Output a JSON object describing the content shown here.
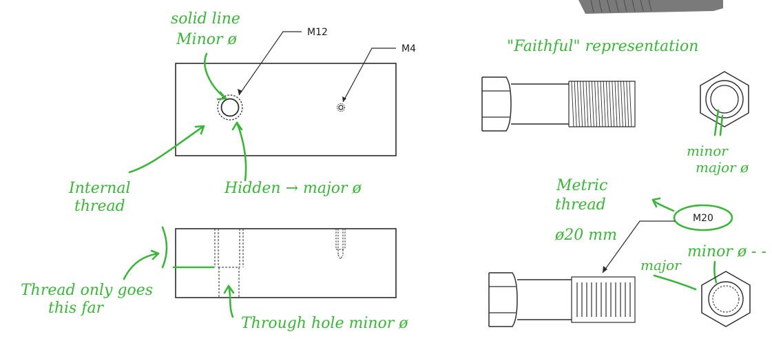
{
  "labels": {
    "m12": "M12",
    "m4": "M4",
    "m20": "M20"
  },
  "annotations": {
    "solid_line": "solid line",
    "minor_dia_top": "Minor ø",
    "internal_thread_1": "Internal",
    "internal_thread_2": "thread",
    "hidden_major": "Hidden → major ø",
    "thread_only_1": "Thread only goes",
    "thread_only_2": "this far",
    "through_hole": "Through hole minor ø",
    "faithful": "\"Faithful\" representation",
    "minor": "minor",
    "major_dia": "major ø",
    "metric_1": "Metric",
    "metric_2": "thread",
    "metric_3": "ø20 mm",
    "major": "major",
    "minor_dia_dash": "minor ø - - ."
  },
  "colors": {
    "annotation": "#3cb43a",
    "line": "#2a2a2a"
  }
}
